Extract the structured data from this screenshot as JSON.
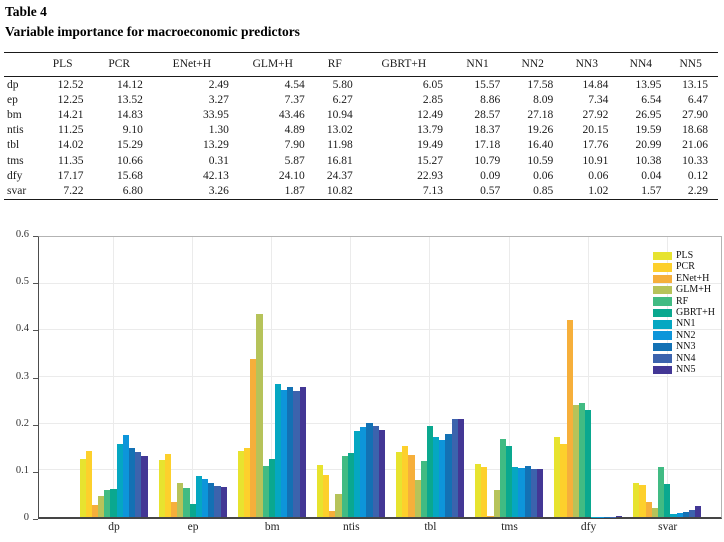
{
  "title": {
    "line1": "Table 4",
    "line2": "Variable importance for macroeconomic predictors"
  },
  "table": {
    "corner_label": "",
    "columns": [
      "PLS",
      "PCR",
      "ENet+H",
      "GLM+H",
      "RF",
      "GBRT+H",
      "NN1",
      "NN2",
      "NN3",
      "NN4",
      "NN5"
    ],
    "rows": [
      {
        "label": "dp",
        "values": [
          "12.52",
          "14.12",
          "2.49",
          "4.54",
          "5.80",
          "6.05",
          "15.57",
          "17.58",
          "14.84",
          "13.95",
          "13.15"
        ]
      },
      {
        "label": "ep",
        "values": [
          "12.25",
          "13.52",
          "3.27",
          "7.37",
          "6.27",
          "2.85",
          "8.86",
          "8.09",
          "7.34",
          "6.54",
          "6.47"
        ]
      },
      {
        "label": "bm",
        "values": [
          "14.21",
          "14.83",
          "33.95",
          "43.46",
          "10.94",
          "12.49",
          "28.57",
          "27.18",
          "27.92",
          "26.95",
          "27.90"
        ]
      },
      {
        "label": "ntis",
        "values": [
          "11.25",
          "9.10",
          "1.30",
          "4.89",
          "13.02",
          "13.79",
          "18.37",
          "19.26",
          "20.15",
          "19.59",
          "18.68"
        ]
      },
      {
        "label": "tbl",
        "values": [
          "14.02",
          "15.29",
          "13.29",
          "7.90",
          "11.98",
          "19.49",
          "17.18",
          "16.40",
          "17.76",
          "20.99",
          "21.06"
        ]
      },
      {
        "label": "tms",
        "values": [
          "11.35",
          "10.66",
          "0.31",
          "5.87",
          "16.81",
          "15.27",
          "10.79",
          "10.59",
          "10.91",
          "10.38",
          "10.33"
        ]
      },
      {
        "label": "dfy",
        "values": [
          "17.17",
          "15.68",
          "42.13",
          "24.10",
          "24.37",
          "22.93",
          "0.09",
          "0.06",
          "0.06",
          "0.04",
          "0.12"
        ]
      },
      {
        "label": "svar",
        "values": [
          "7.22",
          "6.80",
          "3.26",
          "1.87",
          "10.82",
          "7.13",
          "0.57",
          "0.85",
          "1.02",
          "1.57",
          "2.29"
        ]
      }
    ]
  },
  "chart_data": {
    "type": "bar",
    "title": "",
    "xlabel": "",
    "ylabel": "",
    "categories": [
      "dp",
      "ep",
      "bm",
      "ntis",
      "tbl",
      "tms",
      "dfy",
      "svar"
    ],
    "series": [
      {
        "name": "PLS",
        "color": "#e7e32f",
        "values": [
          0.1252,
          0.1225,
          0.1421,
          0.1125,
          0.1402,
          0.1135,
          0.1717,
          0.0722
        ]
      },
      {
        "name": "PCR",
        "color": "#fdd02c",
        "values": [
          0.1412,
          0.1352,
          0.1483,
          0.091,
          0.1529,
          0.1066,
          0.1568,
          0.068
        ]
      },
      {
        "name": "ENet+H",
        "color": "#f6af3b",
        "values": [
          0.0249,
          0.0327,
          0.3395,
          0.013,
          0.1329,
          0.0031,
          0.4213,
          0.0326
        ]
      },
      {
        "name": "GLM+H",
        "color": "#b6c35a",
        "values": [
          0.0454,
          0.0737,
          0.4346,
          0.0489,
          0.079,
          0.0587,
          0.241,
          0.0187
        ]
      },
      {
        "name": "RF",
        "color": "#41bb83",
        "values": [
          0.058,
          0.0627,
          0.1094,
          0.1302,
          0.1198,
          0.1681,
          0.2437,
          0.1082
        ]
      },
      {
        "name": "GBRT+H",
        "color": "#0aa88f",
        "values": [
          0.0605,
          0.0285,
          0.1249,
          0.1379,
          0.1949,
          0.1527,
          0.2293,
          0.0713
        ]
      },
      {
        "name": "NN1",
        "color": "#05a7c2",
        "values": [
          0.1557,
          0.0886,
          0.2857,
          0.1837,
          0.1718,
          0.1079,
          0.0009,
          0.0057
        ]
      },
      {
        "name": "NN2",
        "color": "#0d95da",
        "values": [
          0.1758,
          0.0809,
          0.2718,
          0.1926,
          0.164,
          0.1059,
          0.0006,
          0.0085
        ]
      },
      {
        "name": "NN3",
        "color": "#1371b4",
        "values": [
          0.1484,
          0.0734,
          0.2792,
          0.2015,
          0.1776,
          0.1091,
          0.0006,
          0.0102
        ]
      },
      {
        "name": "NN4",
        "color": "#3c63ad",
        "values": [
          0.1395,
          0.0654,
          0.2695,
          0.1959,
          0.2099,
          0.1038,
          0.0004,
          0.0157
        ]
      },
      {
        "name": "NN5",
        "color": "#433795",
        "values": [
          0.1315,
          0.0647,
          0.279,
          0.1868,
          0.2106,
          0.1033,
          0.0012,
          0.0229
        ]
      }
    ],
    "ylim": [
      0,
      0.6
    ],
    "yticks": [
      "0",
      "0.1",
      "0.2",
      "0.3",
      "0.4",
      "0.5",
      "0.6"
    ],
    "grid": true,
    "legend_position": "top-right"
  }
}
